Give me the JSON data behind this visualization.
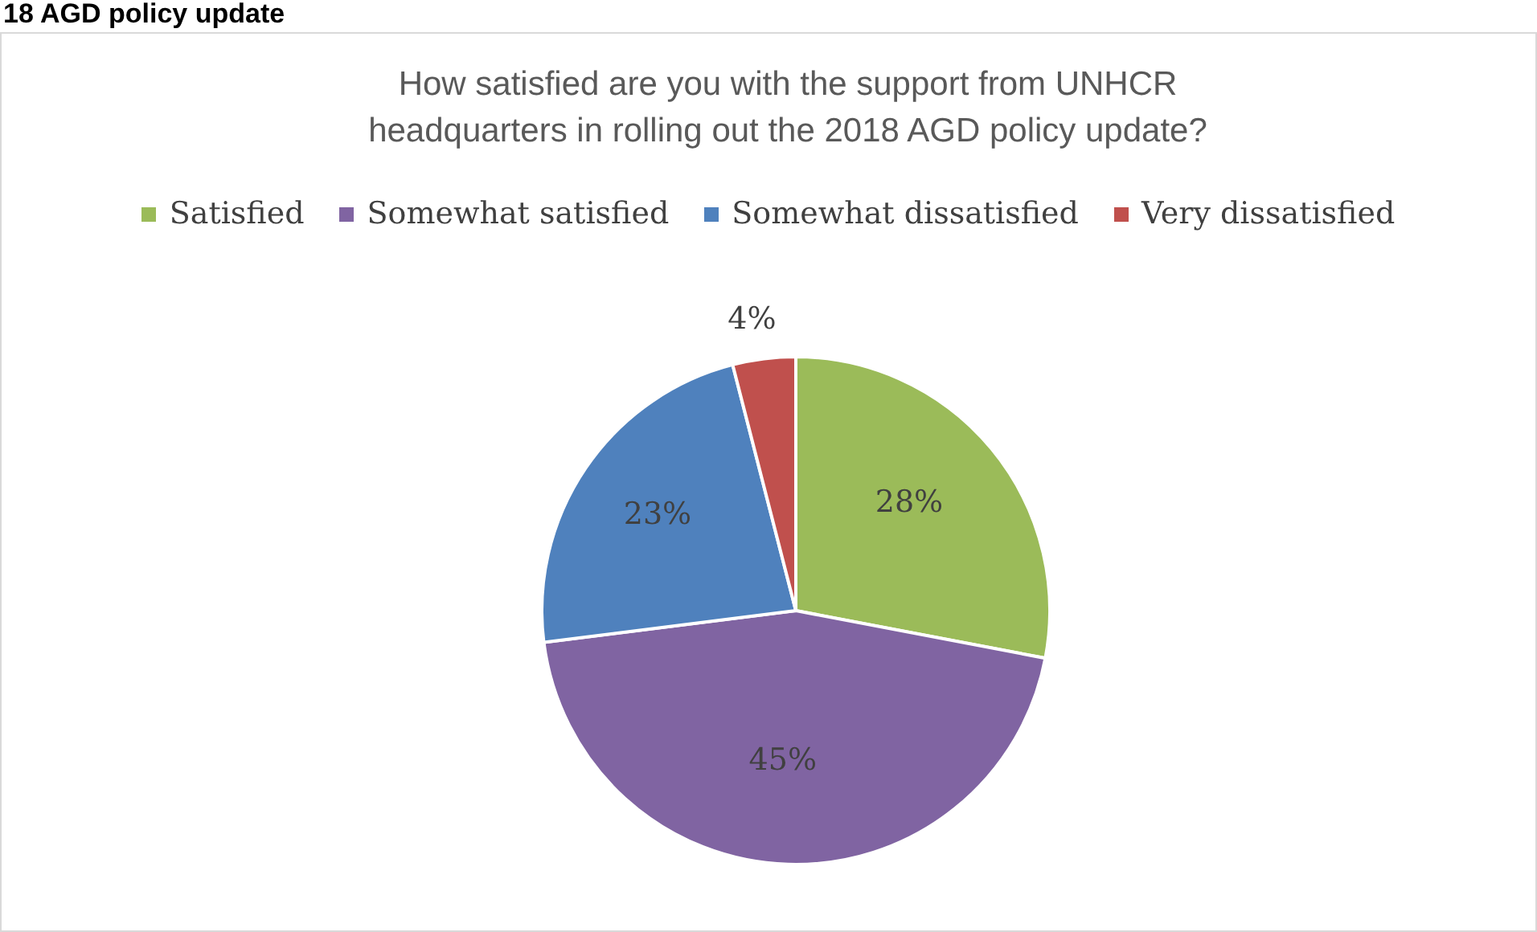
{
  "chart_data": {
    "type": "pie",
    "title": "How satisfied are you with the support from UNHCR headquarters in rolling out the 2018 AGD policy update?",
    "annotations": [
      "18 AGD policy update"
    ],
    "categories": [
      "Satisfied",
      "Somewhat satisfied",
      "Somewhat dissatisfied",
      "Very dissatisfied"
    ],
    "values": [
      28,
      45,
      23,
      4
    ],
    "colors": [
      "#9bbb59",
      "#8064a2",
      "#4f81bd",
      "#c0504d"
    ],
    "value_labels": [
      "28%",
      "45%",
      "23%",
      "4%"
    ],
    "legend": "top"
  }
}
